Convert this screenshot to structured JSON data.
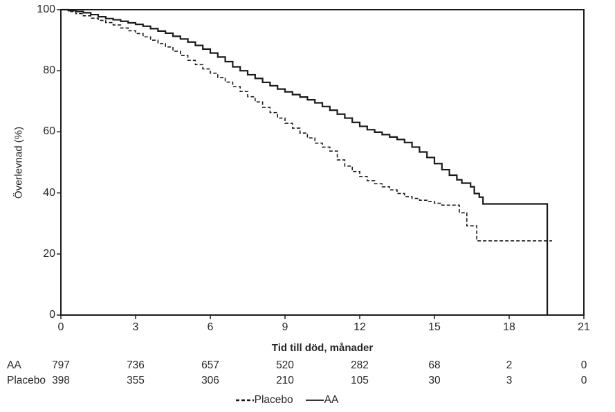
{
  "figure": {
    "background": "#ffffff",
    "line_color": "#1a1a1a",
    "text_color": "#262626"
  },
  "chart_data": {
    "type": "line",
    "subtype": "kaplan-meier-step",
    "title": "",
    "xlabel": "Tid till död, månader",
    "ylabel": "Överlevnad (%)",
    "xlim": [
      0,
      21
    ],
    "ylim": [
      0,
      100
    ],
    "x_ticks": [
      0,
      3,
      6,
      9,
      12,
      15,
      18,
      21
    ],
    "y_ticks": [
      0,
      20,
      40,
      60,
      80,
      100
    ],
    "grid": false,
    "frame": "full-box",
    "legend_position": "bottom-center",
    "series": [
      {
        "name": "AA",
        "style": "solid",
        "points": [
          [
            0,
            100
          ],
          [
            0.3,
            99.7
          ],
          [
            0.6,
            99.4
          ],
          [
            0.9,
            99.0
          ],
          [
            1.2,
            98.4
          ],
          [
            1.5,
            97.7
          ],
          [
            1.8,
            97.1
          ],
          [
            2.1,
            96.7
          ],
          [
            2.4,
            96.2
          ],
          [
            2.7,
            95.7
          ],
          [
            3.0,
            95.2
          ],
          [
            3.3,
            94.6
          ],
          [
            3.6,
            93.8
          ],
          [
            3.9,
            93.0
          ],
          [
            4.2,
            92.3
          ],
          [
            4.5,
            91.3
          ],
          [
            4.8,
            90.4
          ],
          [
            5.1,
            89.4
          ],
          [
            5.4,
            88.3
          ],
          [
            5.7,
            87.1
          ],
          [
            6.0,
            85.8
          ],
          [
            6.3,
            84.5
          ],
          [
            6.6,
            83.0
          ],
          [
            6.9,
            81.3
          ],
          [
            7.2,
            80.0
          ],
          [
            7.5,
            78.7
          ],
          [
            7.8,
            77.5
          ],
          [
            8.1,
            76.2
          ],
          [
            8.4,
            75.1
          ],
          [
            8.7,
            74.0
          ],
          [
            9.0,
            73.1
          ],
          [
            9.3,
            72.2
          ],
          [
            9.6,
            71.4
          ],
          [
            9.9,
            70.5
          ],
          [
            10.2,
            69.5
          ],
          [
            10.5,
            68.3
          ],
          [
            10.8,
            67.1
          ],
          [
            11.1,
            65.8
          ],
          [
            11.4,
            64.5
          ],
          [
            11.7,
            63.1
          ],
          [
            12.0,
            61.8
          ],
          [
            12.3,
            60.7
          ],
          [
            12.6,
            59.9
          ],
          [
            12.9,
            59.1
          ],
          [
            13.2,
            58.3
          ],
          [
            13.5,
            57.5
          ],
          [
            13.8,
            56.5
          ],
          [
            14.1,
            55.0
          ],
          [
            14.4,
            53.4
          ],
          [
            14.7,
            51.6
          ],
          [
            15.0,
            49.6
          ],
          [
            15.3,
            47.6
          ],
          [
            15.6,
            45.8
          ],
          [
            15.9,
            44.3
          ],
          [
            16.1,
            43.2
          ],
          [
            16.45,
            42.0
          ],
          [
            16.6,
            39.8
          ],
          [
            16.8,
            38.6
          ],
          [
            16.95,
            36.4
          ],
          [
            19.53,
            36.4
          ],
          [
            19.53,
            0
          ]
        ]
      },
      {
        "name": "Placebo",
        "style": "dashed",
        "points": [
          [
            0,
            100
          ],
          [
            0.3,
            99.4
          ],
          [
            0.6,
            98.7
          ],
          [
            0.9,
            98.0
          ],
          [
            1.2,
            97.2
          ],
          [
            1.5,
            96.5
          ],
          [
            1.8,
            95.8
          ],
          [
            2.1,
            95.0
          ],
          [
            2.4,
            94.0
          ],
          [
            2.7,
            93.1
          ],
          [
            3.0,
            92.2
          ],
          [
            3.3,
            91.1
          ],
          [
            3.6,
            90.0
          ],
          [
            3.9,
            88.9
          ],
          [
            4.2,
            87.8
          ],
          [
            4.5,
            86.4
          ],
          [
            4.8,
            85.0
          ],
          [
            5.1,
            83.4
          ],
          [
            5.4,
            82.0
          ],
          [
            5.7,
            80.6
          ],
          [
            6.0,
            79.2
          ],
          [
            6.3,
            77.8
          ],
          [
            6.6,
            76.3
          ],
          [
            6.9,
            74.8
          ],
          [
            7.2,
            73.2
          ],
          [
            7.5,
            71.5
          ],
          [
            7.8,
            69.8
          ],
          [
            8.1,
            68.0
          ],
          [
            8.4,
            66.3
          ],
          [
            8.7,
            64.5
          ],
          [
            9.0,
            62.8
          ],
          [
            9.3,
            61.2
          ],
          [
            9.6,
            59.6
          ],
          [
            9.9,
            58.0
          ],
          [
            10.2,
            56.3
          ],
          [
            10.5,
            55.0
          ],
          [
            10.8,
            53.7
          ],
          [
            11.1,
            50.8
          ],
          [
            11.4,
            48.8
          ],
          [
            11.7,
            47.0
          ],
          [
            12.0,
            45.4
          ],
          [
            12.3,
            44.0
          ],
          [
            12.6,
            43.0
          ],
          [
            12.9,
            42.0
          ],
          [
            13.2,
            41.0
          ],
          [
            13.5,
            39.8
          ],
          [
            13.8,
            38.8
          ],
          [
            14.1,
            38.2
          ],
          [
            14.4,
            37.6
          ],
          [
            14.7,
            37.2
          ],
          [
            15.0,
            36.6
          ],
          [
            15.3,
            36.0
          ],
          [
            16.0,
            33.5
          ],
          [
            16.3,
            29.2
          ],
          [
            16.7,
            24.3
          ],
          [
            19.72,
            24.3
          ]
        ]
      }
    ]
  },
  "risk_table": {
    "time_points": [
      0,
      3,
      6,
      9,
      12,
      15,
      18,
      21
    ],
    "rows": [
      {
        "label": "AA",
        "values": [
          "797",
          "736",
          "657",
          "520",
          "282",
          "68",
          "2",
          "0"
        ]
      },
      {
        "label": "Placebo",
        "values": [
          "398",
          "355",
          "306",
          "210",
          "105",
          "30",
          "3",
          "0"
        ]
      }
    ]
  },
  "legend": {
    "items": [
      {
        "label": "Placebo",
        "style": "dashed"
      },
      {
        "label": "AA",
        "style": "solid"
      }
    ]
  }
}
